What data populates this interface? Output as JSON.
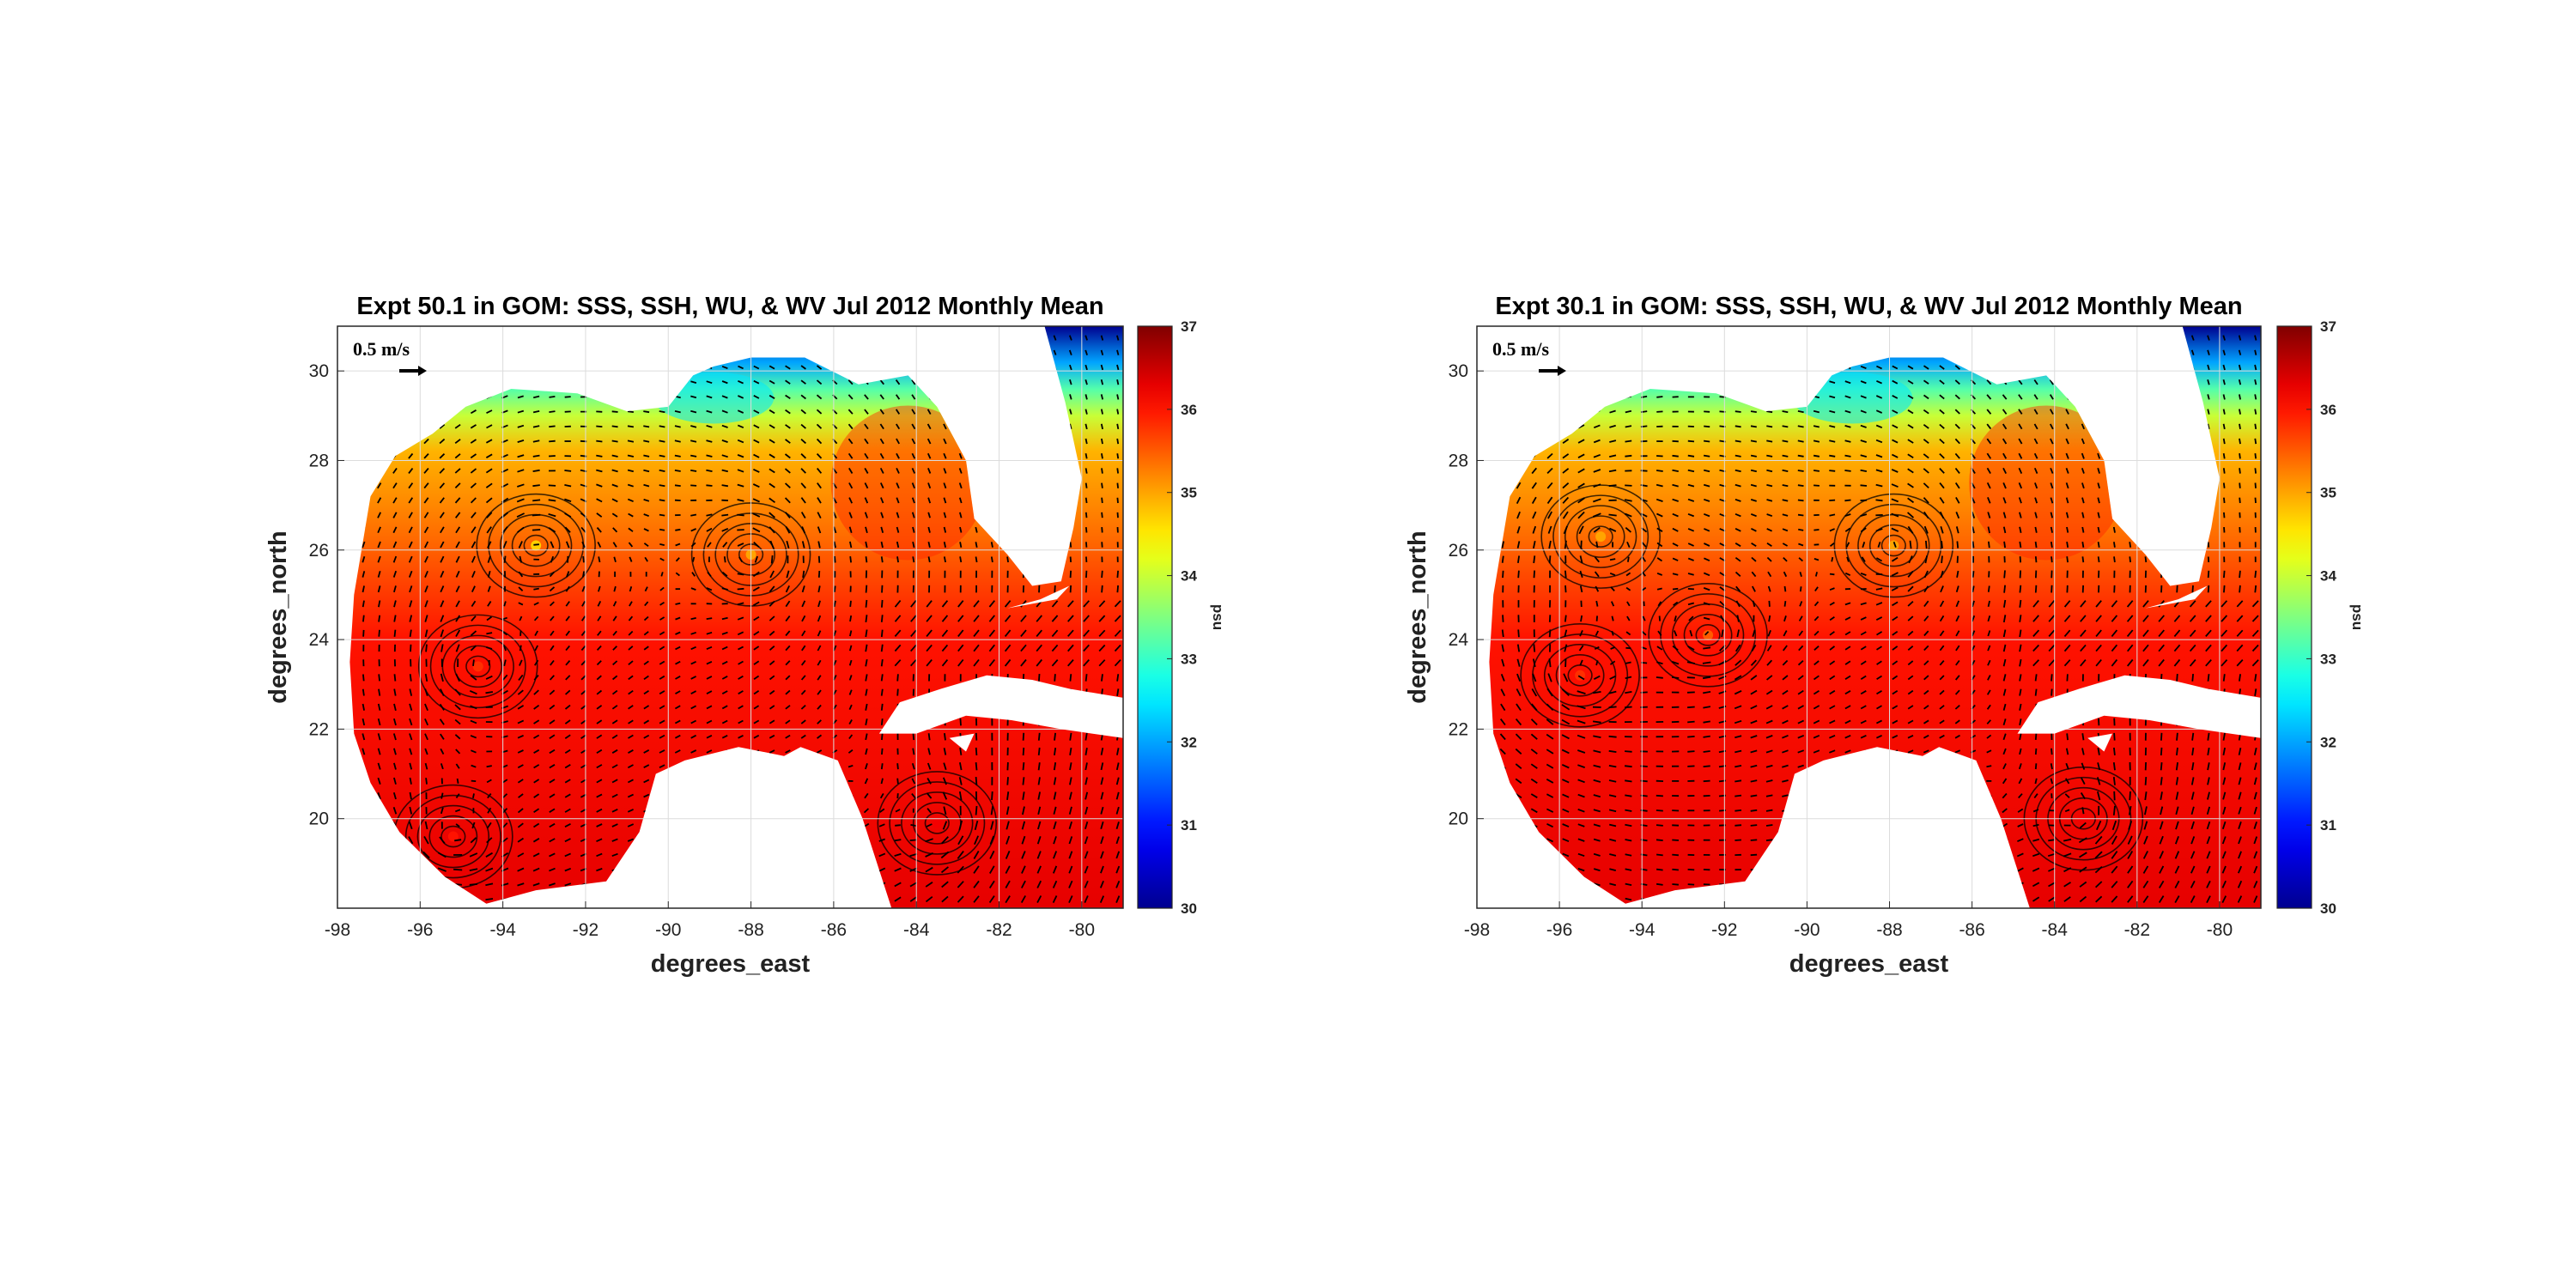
{
  "colors": {
    "land": "#ffffff",
    "frame": "#262626",
    "grid": "#dcdcdc",
    "vector": "#000000",
    "colormap": [
      "#00008f",
      "#0000ff",
      "#00ffff",
      "#ffff00",
      "#ff0000",
      "#800000"
    ]
  },
  "chart_data": [
    {
      "type": "heatmap",
      "title": "Expt 50.1 in GOM: SSS, SSH, WU, & WV Jul 2012 Monthly Mean",
      "xlabel": "degrees_east",
      "ylabel": "degrees_north",
      "xlim": [
        -98,
        -79
      ],
      "ylim": [
        18,
        31
      ],
      "xticks": [
        -98,
        -96,
        -94,
        -92,
        -90,
        -88,
        -86,
        -84,
        -82,
        -80
      ],
      "xtick_labels": [
        "-98",
        "-96",
        "-94",
        "-92",
        "-90",
        "-88",
        "-86",
        "-84",
        "-82",
        "-80"
      ],
      "yticks": [
        20,
        22,
        24,
        26,
        28,
        30
      ],
      "ytick_labels": [
        "20",
        "22",
        "24",
        "26",
        "28",
        "30"
      ],
      "grid": true,
      "colorbar": {
        "label": "psu",
        "range": [
          30,
          37
        ],
        "ticks": [
          30,
          31,
          32,
          33,
          34,
          35,
          36,
          37
        ],
        "tick_labels": [
          "30",
          "31",
          "32",
          "33",
          "34",
          "35",
          "36",
          "37"
        ],
        "colormap": "jet"
      },
      "reference_vector": {
        "label": "0.5 m/s",
        "magnitude": 0.5,
        "units": "m/s"
      },
      "eddies": [
        {
          "lon": -93.2,
          "lat": 26.1,
          "sss": 34.7
        },
        {
          "lon": -88.0,
          "lat": 25.9,
          "sss": 35.0
        },
        {
          "lon": -94.6,
          "lat": 23.4,
          "sss": 35.8
        },
        {
          "lon": -95.2,
          "lat": 19.6,
          "sss": 36.0
        },
        {
          "lon": -83.5,
          "lat": 19.9,
          "sss": 36.2
        }
      ]
    },
    {
      "type": "heatmap",
      "title": "Expt 30.1 in GOM: SSS, SSH, WU, & WV Jul 2012 Monthly Mean",
      "xlabel": "degrees_east",
      "ylabel": "degrees_north",
      "xlim": [
        -98,
        -79
      ],
      "ylim": [
        18,
        31
      ],
      "xticks": [
        -98,
        -96,
        -94,
        -92,
        -90,
        -88,
        -86,
        -84,
        -82,
        -80
      ],
      "xtick_labels": [
        "-98",
        "-96",
        "-94",
        "-92",
        "-90",
        "-88",
        "-86",
        "-84",
        "-82",
        "-80"
      ],
      "yticks": [
        20,
        22,
        24,
        26,
        28,
        30
      ],
      "ytick_labels": [
        "20",
        "22",
        "24",
        "26",
        "28",
        "30"
      ],
      "grid": true,
      "colorbar": {
        "label": "psu",
        "range": [
          30,
          37
        ],
        "ticks": [
          30,
          31,
          32,
          33,
          34,
          35,
          36,
          37
        ],
        "tick_labels": [
          "30",
          "31",
          "32",
          "33",
          "34",
          "35",
          "36",
          "37"
        ],
        "colormap": "jet"
      },
      "reference_vector": {
        "label": "0.5 m/s",
        "magnitude": 0.5,
        "units": "m/s"
      },
      "eddies": [
        {
          "lon": -95.0,
          "lat": 26.3,
          "sss": 35.0
        },
        {
          "lon": -87.9,
          "lat": 26.1,
          "sss": 35.0
        },
        {
          "lon": -92.4,
          "lat": 24.1,
          "sss": 35.5
        },
        {
          "lon": -95.5,
          "lat": 23.2,
          "sss": 35.8
        },
        {
          "lon": -83.3,
          "lat": 20.0,
          "sss": 36.2
        }
      ]
    }
  ]
}
